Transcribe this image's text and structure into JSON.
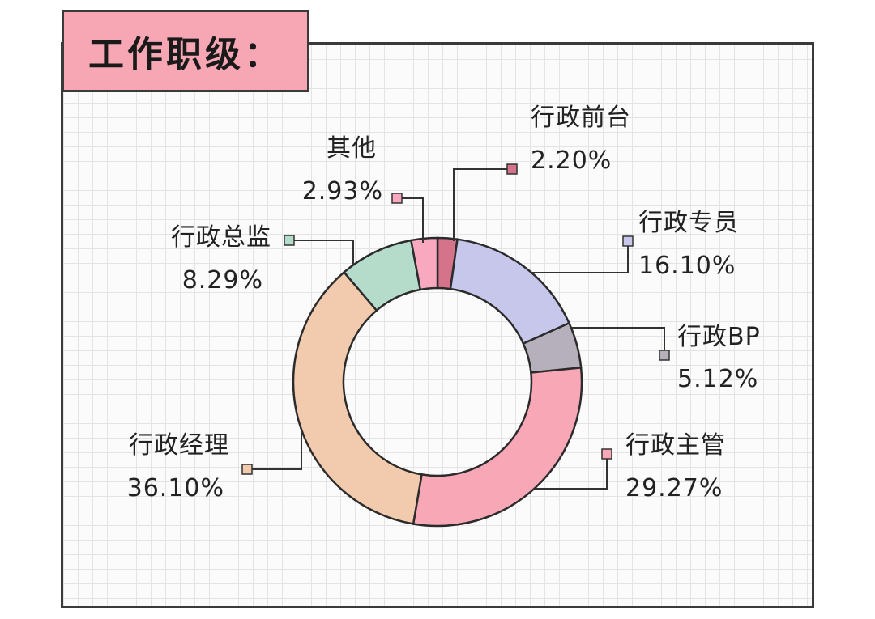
{
  "title": "工作职级：",
  "chart_data": {
    "type": "pie",
    "donut": true,
    "slices": [
      {
        "label": "行政前台",
        "value": 2.2,
        "value_text": "2.20%",
        "color": "#d4738a"
      },
      {
        "label": "行政专员",
        "value": 16.1,
        "value_text": "16.10%",
        "color": "#c7c7ec"
      },
      {
        "label": "行政BP",
        "value": 5.12,
        "value_text": "5.12%",
        "color": "#b5b0bb"
      },
      {
        "label": "行政主管",
        "value": 29.27,
        "value_text": "29.27%",
        "color": "#f8a7b7"
      },
      {
        "label": "行政经理",
        "value": 36.1,
        "value_text": "36.10%",
        "color": "#f2cbae"
      },
      {
        "label": "行政总监",
        "value": 8.29,
        "value_text": "8.29%",
        "color": "#b5dccb"
      },
      {
        "label": "其他",
        "value": 2.93,
        "value_text": "2.93%",
        "color": "#f8a9c0"
      }
    ]
  }
}
